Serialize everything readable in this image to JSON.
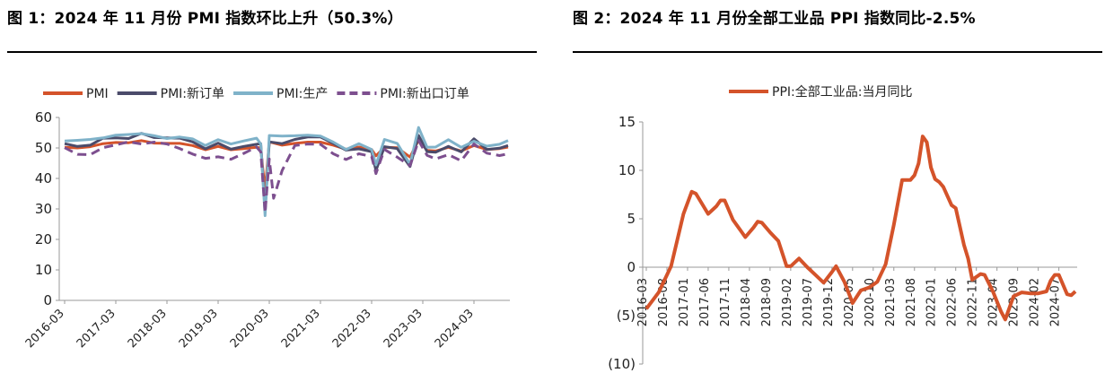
{
  "figures": [
    {
      "title": "图 1：2024 年 11 月份 PMI 指数环比上升（50.3%）"
    },
    {
      "title": "图 2：2024 年 11 月份全部工业品 PPI 指数同比-2.5%"
    }
  ],
  "chart_data": [
    {
      "type": "line",
      "legend_position": "top",
      "grid": false,
      "ylim": [
        0,
        60
      ],
      "yticks": [
        "0",
        "10",
        "20",
        "30",
        "40",
        "50",
        "60"
      ],
      "x_start": "2016-03",
      "x_end": "2024-11",
      "xticks": [
        "2016-03",
        "2017-03",
        "2018-03",
        "2019-03",
        "2020-03",
        "2021-03",
        "2022-03",
        "2023-03",
        "2024-03"
      ],
      "series": [
        {
          "name": "PMI",
          "color": "#d4532a",
          "dashed": false,
          "points": [
            [
              "2016-03",
              50.2
            ],
            [
              "2016-06",
              50.0
            ],
            [
              "2016-09",
              50.4
            ],
            [
              "2016-12",
              51.4
            ],
            [
              "2017-03",
              51.8
            ],
            [
              "2017-06",
              51.7
            ],
            [
              "2017-09",
              52.4
            ],
            [
              "2017-12",
              51.6
            ],
            [
              "2018-03",
              51.5
            ],
            [
              "2018-06",
              51.5
            ],
            [
              "2018-09",
              50.8
            ],
            [
              "2018-12",
              49.4
            ],
            [
              "2019-03",
              50.5
            ],
            [
              "2019-06",
              49.4
            ],
            [
              "2019-09",
              49.8
            ],
            [
              "2019-12",
              50.2
            ],
            [
              "2020-01",
              50.0
            ],
            [
              "2020-02",
              35.7
            ],
            [
              "2020-03",
              52.0
            ],
            [
              "2020-06",
              50.9
            ],
            [
              "2020-09",
              51.5
            ],
            [
              "2020-12",
              51.9
            ],
            [
              "2021-03",
              51.9
            ],
            [
              "2021-06",
              50.9
            ],
            [
              "2021-09",
              49.6
            ],
            [
              "2021-12",
              50.3
            ],
            [
              "2022-03",
              49.5
            ],
            [
              "2022-04",
              47.4
            ],
            [
              "2022-06",
              50.2
            ],
            [
              "2022-09",
              50.1
            ],
            [
              "2022-12",
              47.0
            ],
            [
              "2023-02",
              52.6
            ],
            [
              "2023-04",
              49.2
            ],
            [
              "2023-06",
              49.0
            ],
            [
              "2023-09",
              50.2
            ],
            [
              "2023-12",
              49.0
            ],
            [
              "2024-03",
              50.8
            ],
            [
              "2024-06",
              49.5
            ],
            [
              "2024-09",
              49.8
            ],
            [
              "2024-11",
              50.3
            ]
          ]
        },
        {
          "name": "PMI:新订单",
          "color": "#4b4b6a",
          "dashed": false,
          "points": [
            [
              "2016-03",
              51.4
            ],
            [
              "2016-06",
              50.5
            ],
            [
              "2016-09",
              50.9
            ],
            [
              "2016-12",
              53.2
            ],
            [
              "2017-03",
              53.3
            ],
            [
              "2017-06",
              53.1
            ],
            [
              "2017-09",
              54.8
            ],
            [
              "2017-12",
              53.4
            ],
            [
              "2018-03",
              53.3
            ],
            [
              "2018-06",
              53.2
            ],
            [
              "2018-09",
              52.0
            ],
            [
              "2018-12",
              49.7
            ],
            [
              "2019-03",
              51.6
            ],
            [
              "2019-06",
              49.6
            ],
            [
              "2019-09",
              50.5
            ],
            [
              "2019-12",
              51.2
            ],
            [
              "2020-01",
              51.4
            ],
            [
              "2020-02",
              29.3
            ],
            [
              "2020-03",
              52.0
            ],
            [
              "2020-06",
              51.4
            ],
            [
              "2020-09",
              52.8
            ],
            [
              "2020-12",
              53.6
            ],
            [
              "2021-03",
              53.6
            ],
            [
              "2021-06",
              51.5
            ],
            [
              "2021-09",
              49.3
            ],
            [
              "2021-12",
              49.7
            ],
            [
              "2022-03",
              48.8
            ],
            [
              "2022-04",
              42.6
            ],
            [
              "2022-06",
              50.4
            ],
            [
              "2022-09",
              49.8
            ],
            [
              "2022-12",
              43.9
            ],
            [
              "2023-02",
              54.1
            ],
            [
              "2023-04",
              48.8
            ],
            [
              "2023-06",
              48.6
            ],
            [
              "2023-09",
              50.5
            ],
            [
              "2023-12",
              48.7
            ],
            [
              "2024-03",
              53.0
            ],
            [
              "2024-06",
              49.5
            ],
            [
              "2024-09",
              49.9
            ],
            [
              "2024-11",
              50.8
            ]
          ]
        },
        {
          "name": "PMI:生产",
          "color": "#7fb2c9",
          "dashed": false,
          "points": [
            [
              "2016-03",
              52.3
            ],
            [
              "2016-06",
              52.5
            ],
            [
              "2016-09",
              52.8
            ],
            [
              "2016-12",
              53.3
            ],
            [
              "2017-03",
              54.2
            ],
            [
              "2017-06",
              54.4
            ],
            [
              "2017-09",
              54.7
            ],
            [
              "2017-12",
              54.0
            ],
            [
              "2018-03",
              53.1
            ],
            [
              "2018-06",
              53.6
            ],
            [
              "2018-09",
              53.0
            ],
            [
              "2018-12",
              50.8
            ],
            [
              "2019-03",
              52.7
            ],
            [
              "2019-06",
              51.3
            ],
            [
              "2019-09",
              52.3
            ],
            [
              "2019-12",
              53.2
            ],
            [
              "2020-01",
              51.3
            ],
            [
              "2020-02",
              27.8
            ],
            [
              "2020-03",
              54.1
            ],
            [
              "2020-06",
              53.9
            ],
            [
              "2020-09",
              54.0
            ],
            [
              "2020-12",
              54.2
            ],
            [
              "2021-03",
              53.9
            ],
            [
              "2021-06",
              51.9
            ],
            [
              "2021-09",
              49.5
            ],
            [
              "2021-12",
              51.4
            ],
            [
              "2022-03",
              49.5
            ],
            [
              "2022-04",
              44.4
            ],
            [
              "2022-06",
              52.8
            ],
            [
              "2022-09",
              51.5
            ],
            [
              "2022-12",
              44.6
            ],
            [
              "2023-02",
              56.7
            ],
            [
              "2023-04",
              50.2
            ],
            [
              "2023-06",
              50.3
            ],
            [
              "2023-09",
              52.7
            ],
            [
              "2023-12",
              50.2
            ],
            [
              "2024-03",
              52.2
            ],
            [
              "2024-06",
              50.6
            ],
            [
              "2024-09",
              51.2
            ],
            [
              "2024-11",
              52.4
            ]
          ]
        },
        {
          "name": "PMI:新出口订单",
          "color": "#7d4f8f",
          "dashed": true,
          "points": [
            [
              "2016-03",
              50.1
            ],
            [
              "2016-06",
              47.9
            ],
            [
              "2016-09",
              47.8
            ],
            [
              "2016-12",
              50.1
            ],
            [
              "2017-03",
              51.0
            ],
            [
              "2017-06",
              52.0
            ],
            [
              "2017-09",
              51.3
            ],
            [
              "2017-12",
              51.9
            ],
            [
              "2018-03",
              51.3
            ],
            [
              "2018-06",
              49.8
            ],
            [
              "2018-09",
              48.0
            ],
            [
              "2018-12",
              46.6
            ],
            [
              "2019-03",
              47.1
            ],
            [
              "2019-06",
              46.3
            ],
            [
              "2019-09",
              48.2
            ],
            [
              "2019-12",
              50.3
            ],
            [
              "2020-01",
              48.7
            ],
            [
              "2020-02",
              28.7
            ],
            [
              "2020-03",
              46.4
            ],
            [
              "2020-04",
              33.5
            ],
            [
              "2020-06",
              42.6
            ],
            [
              "2020-09",
              50.8
            ],
            [
              "2020-12",
              51.3
            ],
            [
              "2021-03",
              51.2
            ],
            [
              "2021-06",
              48.1
            ],
            [
              "2021-09",
              46.2
            ],
            [
              "2021-12",
              48.1
            ],
            [
              "2022-03",
              47.2
            ],
            [
              "2022-04",
              41.6
            ],
            [
              "2022-06",
              49.5
            ],
            [
              "2022-09",
              47.0
            ],
            [
              "2022-12",
              44.2
            ],
            [
              "2023-02",
              52.4
            ],
            [
              "2023-04",
              47.6
            ],
            [
              "2023-06",
              46.4
            ],
            [
              "2023-09",
              47.8
            ],
            [
              "2023-12",
              45.8
            ],
            [
              "2024-03",
              51.3
            ],
            [
              "2024-06",
              48.3
            ],
            [
              "2024-09",
              47.5
            ],
            [
              "2024-11",
              48.1
            ]
          ]
        }
      ]
    },
    {
      "type": "line",
      "legend_position": "top",
      "grid": false,
      "ylim": [
        -10,
        15
      ],
      "yticks": [
        "(10)",
        "(5)",
        "0",
        "5",
        "10",
        "15"
      ],
      "x_start": "2016-03",
      "x_end": "2024-11",
      "xticks": [
        "2016-03",
        "2016-08",
        "2017-01",
        "2017-06",
        "2017-11",
        "2018-04",
        "2018-09",
        "2019-02",
        "2019-07",
        "2019-12",
        "2020-05",
        "2020-10",
        "2021-03",
        "2021-08",
        "2022-01",
        "2022-06",
        "2022-11",
        "2023-04",
        "2023-09",
        "2024-02",
        "2024-07"
      ],
      "series": [
        {
          "name": "PPI:全部工业品:当月同比",
          "color": "#d4532a",
          "dashed": false,
          "points": [
            [
              "2016-03",
              -4.3
            ],
            [
              "2016-06",
              -2.6
            ],
            [
              "2016-09",
              0.1
            ],
            [
              "2016-12",
              5.5
            ],
            [
              "2017-02",
              7.8
            ],
            [
              "2017-03",
              7.6
            ],
            [
              "2017-06",
              5.5
            ],
            [
              "2017-08",
              6.3
            ],
            [
              "2017-09",
              6.9
            ],
            [
              "2017-10",
              6.9
            ],
            [
              "2017-12",
              4.9
            ],
            [
              "2018-02",
              3.7
            ],
            [
              "2018-03",
              3.1
            ],
            [
              "2018-05",
              4.1
            ],
            [
              "2018-06",
              4.7
            ],
            [
              "2018-07",
              4.6
            ],
            [
              "2018-09",
              3.6
            ],
            [
              "2018-11",
              2.7
            ],
            [
              "2019-01",
              0.1
            ],
            [
              "2019-02",
              0.1
            ],
            [
              "2019-04",
              0.9
            ],
            [
              "2019-06",
              0.0
            ],
            [
              "2019-08",
              -0.8
            ],
            [
              "2019-10",
              -1.6
            ],
            [
              "2019-12",
              -0.5
            ],
            [
              "2020-01",
              0.1
            ],
            [
              "2020-03",
              -1.5
            ],
            [
              "2020-05",
              -3.7
            ],
            [
              "2020-07",
              -2.4
            ],
            [
              "2020-09",
              -2.1
            ],
            [
              "2020-11",
              -1.5
            ],
            [
              "2021-01",
              0.3
            ],
            [
              "2021-03",
              4.4
            ],
            [
              "2021-05",
              9.0
            ],
            [
              "2021-07",
              9.0
            ],
            [
              "2021-08",
              9.5
            ],
            [
              "2021-09",
              10.7
            ],
            [
              "2021-10",
              13.5
            ],
            [
              "2021-11",
              12.9
            ],
            [
              "2021-12",
              10.3
            ],
            [
              "2022-01",
              9.1
            ],
            [
              "2022-02",
              8.8
            ],
            [
              "2022-03",
              8.3
            ],
            [
              "2022-05",
              6.4
            ],
            [
              "2022-06",
              6.1
            ],
            [
              "2022-07",
              4.2
            ],
            [
              "2022-08",
              2.3
            ],
            [
              "2022-09",
              0.9
            ],
            [
              "2022-10",
              -1.3
            ],
            [
              "2022-12",
              -0.7
            ],
            [
              "2023-01",
              -0.8
            ],
            [
              "2023-03",
              -2.5
            ],
            [
              "2023-05",
              -4.6
            ],
            [
              "2023-06",
              -5.4
            ],
            [
              "2023-08",
              -3.0
            ],
            [
              "2023-10",
              -2.6
            ],
            [
              "2023-12",
              -2.7
            ],
            [
              "2024-02",
              -2.7
            ],
            [
              "2024-04",
              -2.5
            ],
            [
              "2024-05",
              -1.4
            ],
            [
              "2024-06",
              -0.8
            ],
            [
              "2024-07",
              -0.8
            ],
            [
              "2024-09",
              -2.8
            ],
            [
              "2024-10",
              -2.9
            ],
            [
              "2024-11",
              -2.5
            ]
          ]
        }
      ]
    }
  ]
}
